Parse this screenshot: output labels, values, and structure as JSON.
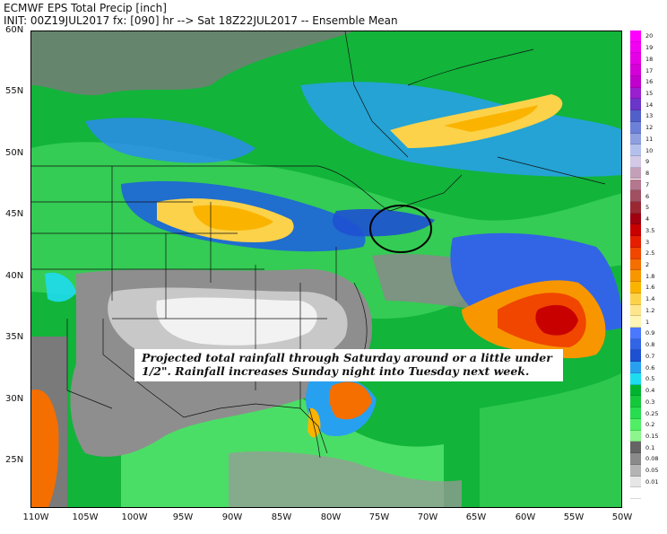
{
  "header": {
    "line1": "ECMWF EPS Total Precip [inch]",
    "line2": "INIT: 00Z19JUL2017 fx: [090] hr --> Sat 18Z22JUL2017 -- Ensemble Mean"
  },
  "axes": {
    "lat_labels": [
      "60N",
      "55N",
      "50N",
      "45N",
      "40N",
      "35N",
      "30N",
      "25N"
    ],
    "lon_labels": [
      "110W",
      "105W",
      "100W",
      "95W",
      "90W",
      "85W",
      "80W",
      "75W",
      "70W",
      "65W",
      "60W",
      "55W",
      "50W"
    ]
  },
  "annotation": {
    "line1": "Projected total rainfall through Saturday around or a little under",
    "line2": "1/2\".  Rainfall increases Sunday night into Tuesday next week."
  },
  "colorbar": {
    "levels": [
      {
        "label": "20",
        "color": "#ff00ff"
      },
      {
        "label": "19",
        "color": "#f200f2"
      },
      {
        "label": "18",
        "color": "#e600e6"
      },
      {
        "label": "17",
        "color": "#d400d8"
      },
      {
        "label": "16",
        "color": "#c000cc"
      },
      {
        "label": "15",
        "color": "#9a1fd0"
      },
      {
        "label": "14",
        "color": "#6a35c8"
      },
      {
        "label": "13",
        "color": "#5060c8"
      },
      {
        "label": "12",
        "color": "#6b80d6"
      },
      {
        "label": "11",
        "color": "#8ea0e0"
      },
      {
        "label": "10",
        "color": "#b4c0ec"
      },
      {
        "label": "9",
        "color": "#d3c8e6"
      },
      {
        "label": "8",
        "color": "#c3a0b8"
      },
      {
        "label": "7",
        "color": "#b4788e"
      },
      {
        "label": "6",
        "color": "#a05060"
      },
      {
        "label": "5",
        "color": "#9a2832"
      },
      {
        "label": "4",
        "color": "#a00010"
      },
      {
        "label": "3.5",
        "color": "#c80000"
      },
      {
        "label": "3",
        "color": "#e61e00"
      },
      {
        "label": "2.5",
        "color": "#f04600"
      },
      {
        "label": "2",
        "color": "#f46e00"
      },
      {
        "label": "1.8",
        "color": "#f89600"
      },
      {
        "label": "1.6",
        "color": "#fab400"
      },
      {
        "label": "1.4",
        "color": "#fcd24a"
      },
      {
        "label": "1.2",
        "color": "#fee68c"
      },
      {
        "label": "1",
        "color": "#fff5b4"
      },
      {
        "label": "0.9",
        "color": "#4a78ff"
      },
      {
        "label": "0.8",
        "color": "#3264e6"
      },
      {
        "label": "0.7",
        "color": "#1e50d2"
      },
      {
        "label": "0.6",
        "color": "#28a0f0"
      },
      {
        "label": "0.5",
        "color": "#1edcf0"
      },
      {
        "label": "0.4",
        "color": "#00b432"
      },
      {
        "label": "0.3",
        "color": "#14c83c"
      },
      {
        "label": "0.25",
        "color": "#28dc50"
      },
      {
        "label": "0.2",
        "color": "#50ee64"
      },
      {
        "label": "0.15",
        "color": "#8cf58c"
      },
      {
        "label": "0.1",
        "color": "#646464"
      },
      {
        "label": "0.08",
        "color": "#8a8a8a"
      },
      {
        "label": "0.05",
        "color": "#b4b4b4"
      },
      {
        "label": "0.01",
        "color": "#e6e6e6"
      },
      {
        "label": "",
        "color": "#ffffff"
      }
    ]
  },
  "map": {
    "feature": "circle-outline",
    "background_color": "#0fae3a"
  }
}
